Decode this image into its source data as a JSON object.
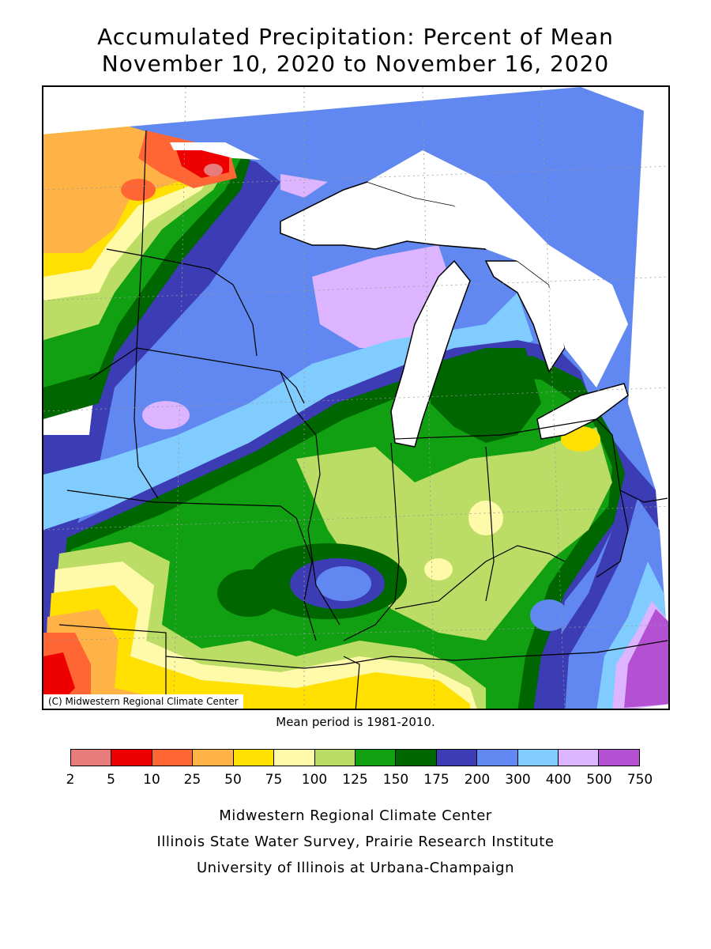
{
  "title_line1": "Accumulated Precipitation: Percent of Mean",
  "title_line2": "November 10, 2020 to November 16, 2020",
  "copyright": "(C) Midwestern Regional Climate Center",
  "mean_note": "Mean period is 1981-2010.",
  "legend": {
    "colors": [
      "#e87c7c",
      "#ee0000",
      "#ff6633",
      "#ffb347",
      "#ffe000",
      "#fffaaa",
      "#bbdd66",
      "#11a011",
      "#006600",
      "#3c3cb4",
      "#6088f0",
      "#80ccff",
      "#dcb4ff",
      "#b450d2"
    ],
    "ticks": [
      "2",
      "5",
      "10",
      "25",
      "50",
      "75",
      "100",
      "125",
      "150",
      "175",
      "200",
      "300",
      "400",
      "500",
      "750"
    ]
  },
  "credits": [
    "Midwestern Regional Climate Center",
    "Illinois State Water Survey, Prairie Research Institute",
    "University of Illinois at Urbana-Champaign"
  ]
}
